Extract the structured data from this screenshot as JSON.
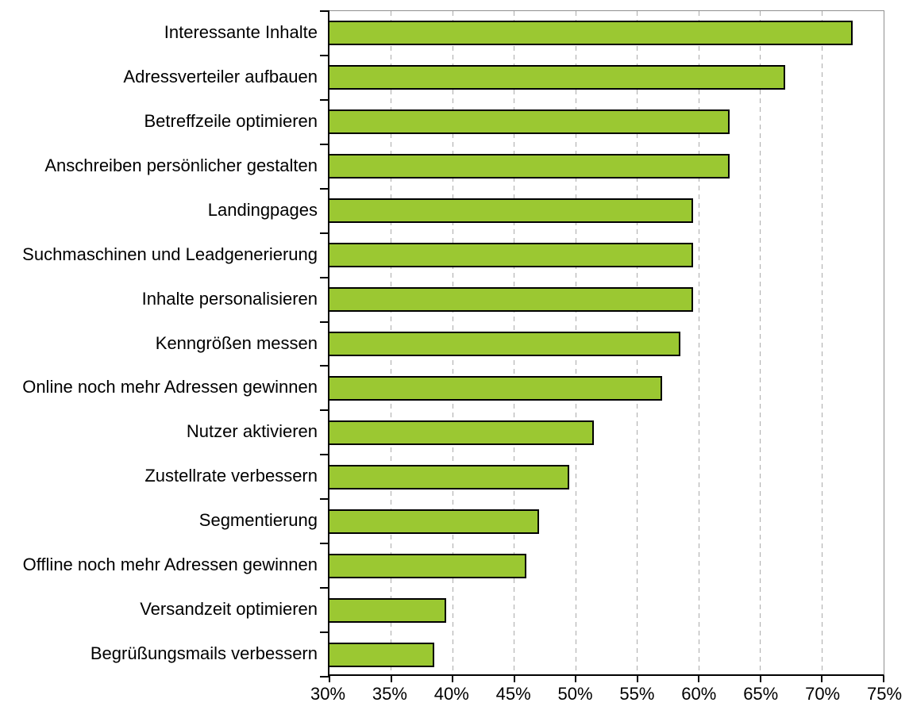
{
  "chart_data": {
    "type": "bar",
    "orientation": "horizontal",
    "title": "",
    "xlabel": "",
    "ylabel": "",
    "legend": "none",
    "grid": "vertical-dashed",
    "unit": "%",
    "categories": [
      "Interessante Inhalte",
      "Adressverteiler aufbauen",
      "Betreffzeile optimieren",
      "Anschreiben persönlicher gestalten",
      "Landingpages",
      "Suchmaschinen und Leadgenerierung",
      "Inhalte personalisieren",
      "Kenngrößen messen",
      "Online noch mehr Adressen gewinnen",
      "Nutzer aktivieren",
      "Zustellrate verbessern",
      "Segmentierung",
      "Offline noch mehr Adressen gewinnen",
      "Versandzeit optimieren",
      "Begrüßungsmails verbessern"
    ],
    "values": [
      72.5,
      67,
      62.5,
      62.5,
      59.5,
      59.5,
      59.5,
      58.5,
      57,
      51.5,
      49.5,
      47,
      46,
      39.5,
      38.5
    ],
    "xlim": [
      30,
      75
    ],
    "xticks": [
      30,
      35,
      40,
      45,
      50,
      55,
      60,
      65,
      70,
      75
    ],
    "xtick_labels": [
      "30%",
      "35%",
      "40%",
      "45%",
      "50%",
      "55%",
      "60%",
      "65%",
      "70%",
      "75%"
    ],
    "colors": {
      "bar_fill": "#9BC832",
      "bar_border": "#000000",
      "gridline": "#ABABAB",
      "axis": "#000000",
      "plot_border": "#8F8F8F",
      "background": "#FFFFFF",
      "label_text": "#000000"
    }
  }
}
